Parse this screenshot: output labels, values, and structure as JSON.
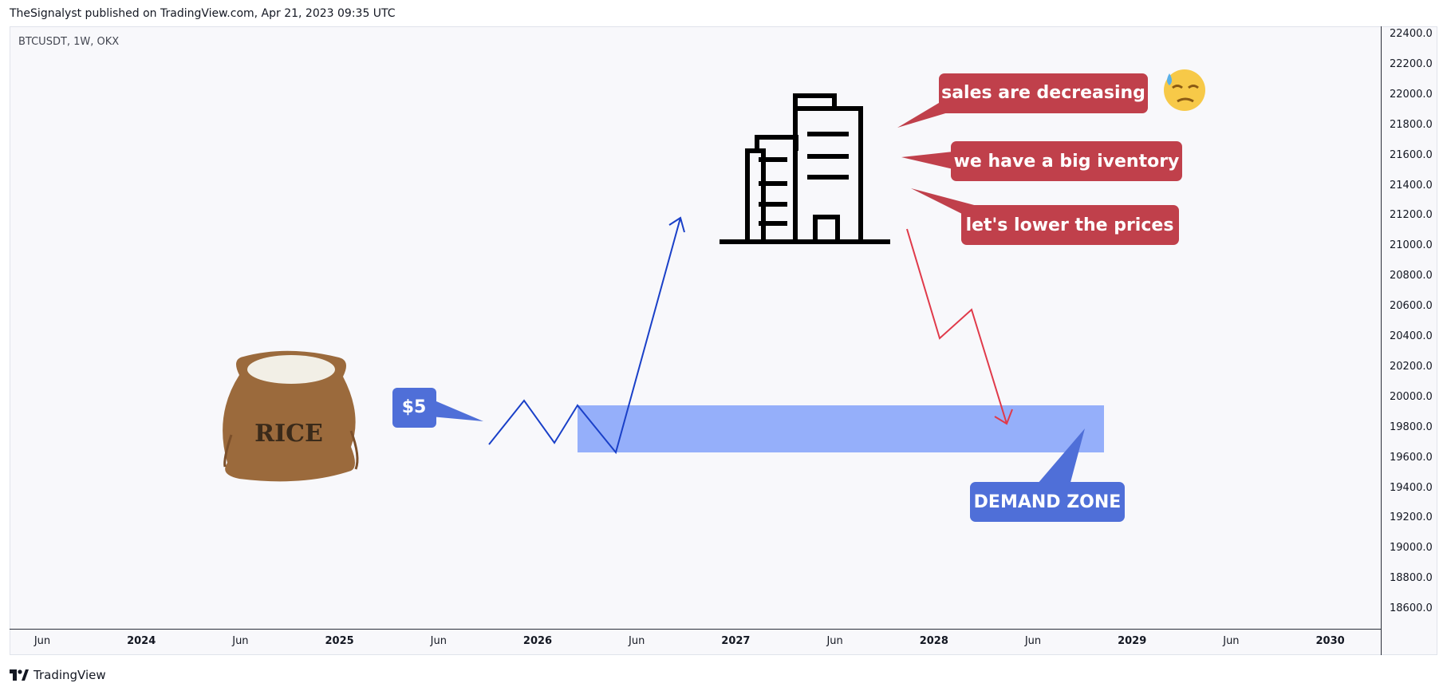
{
  "header": {
    "published": "TheSignalyst published on TradingView.com, Apr 21, 2023 09:35 UTC"
  },
  "chart": {
    "symbol_label": "BTCUSDT, 1W, OKX"
  },
  "branding": {
    "logo_text": "TradingView"
  },
  "colors": {
    "callout_red": "#c0404b",
    "callout_blue": "#4f6fd8",
    "zone_fill": "#8fabfa",
    "up_arrow": "#1a40c8",
    "down_arrow": "#e03a4a"
  },
  "chart_data": {
    "type": "line",
    "title": "",
    "xlabel": "",
    "ylabel": "",
    "ylim": [
      18500,
      22500
    ],
    "y_ticks": [
      "22400.0",
      "22200.0",
      "22000.0",
      "21800.0",
      "21600.0",
      "21400.0",
      "21200.0",
      "21000.0",
      "20800.0",
      "20600.0",
      "20400.0",
      "20200.0",
      "20000.0",
      "19800.0",
      "19600.0",
      "19400.0",
      "19200.0",
      "19000.0",
      "18800.0",
      "18600.0"
    ],
    "x_ticks": [
      {
        "label": "Jun",
        "year_mark": false
      },
      {
        "label": "2024",
        "year_mark": true
      },
      {
        "label": "Jun",
        "year_mark": false
      },
      {
        "label": "2025",
        "year_mark": true
      },
      {
        "label": "Jun",
        "year_mark": false
      },
      {
        "label": "2026",
        "year_mark": true
      },
      {
        "label": "Jun",
        "year_mark": false
      },
      {
        "label": "2027",
        "year_mark": true
      },
      {
        "label": "Jun",
        "year_mark": false
      },
      {
        "label": "2028",
        "year_mark": true
      },
      {
        "label": "Jun",
        "year_mark": false
      },
      {
        "label": "2029",
        "year_mark": true
      },
      {
        "label": "Jun",
        "year_mark": false
      },
      {
        "label": "2030",
        "year_mark": true
      }
    ],
    "demand_zone": {
      "label": "DEMAND ZONE",
      "y_top": 19960,
      "y_bottom": 19650
    },
    "price_callout": "$5",
    "speech_bubbles": [
      "sales are decreasing",
      "we have a big iventory",
      "let's lower the prices"
    ],
    "images": [
      "rice-sack",
      "office-building-icon",
      "sweat-face-emoji"
    ]
  }
}
